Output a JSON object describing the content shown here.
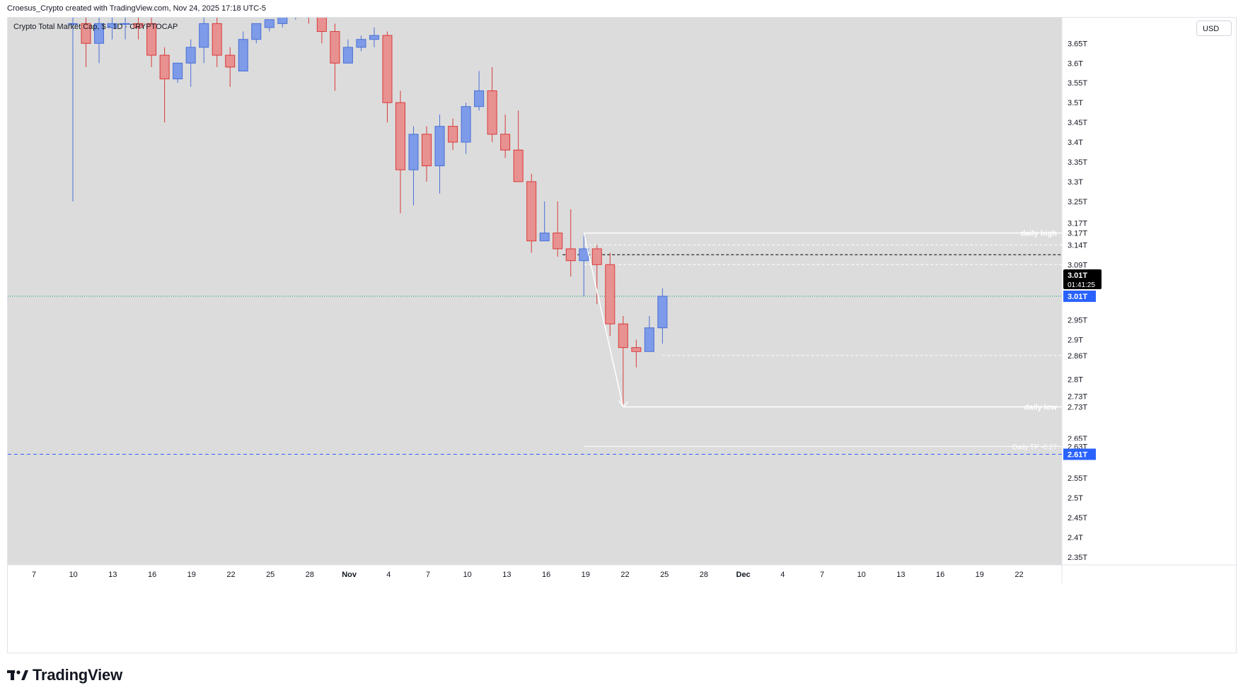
{
  "attribution": "Croesus_Crypto created with TradingView.com, Nov 24, 2025 17:18 UTC-5",
  "symbol_title": "Crypto Total Market Cap, $ · 1D · CRYPTOCAP",
  "currency": "USD",
  "brand": "TradingView",
  "colors": {
    "bull": "#7d9be8",
    "bull_border": "#4a6fd6",
    "bear": "#e89191",
    "bear_border": "#d93a3a",
    "plot_bg": "#dcdcdc",
    "last_price_badge": "#2962ff",
    "countdown_badge": "#000000",
    "level_line": "#ffffff",
    "support_dash": "#2962ff",
    "current_dots": "#089981"
  },
  "chart_data": {
    "type": "candlestick",
    "timeframe": "1D",
    "y_axis_ticks": [
      "3.65T",
      "3.6T",
      "3.55T",
      "3.5T",
      "3.45T",
      "3.4T",
      "3.35T",
      "3.3T",
      "3.25T",
      "2.95T",
      "2.9T",
      "2.8T",
      "2.65T",
      "2.55T",
      "2.5T",
      "2.45T",
      "2.4T",
      "2.35T"
    ],
    "x_axis_ticks": [
      "7",
      "10",
      "13",
      "16",
      "19",
      "22",
      "25",
      "28",
      "Nov",
      "4",
      "7",
      "10",
      "13",
      "16",
      "19",
      "22",
      "25",
      "28",
      "Dec",
      "4",
      "7",
      "10",
      "13",
      "16",
      "19",
      "22"
    ],
    "candles": [
      {
        "date": "Oct 10",
        "o": 3.7,
        "h": 3.75,
        "l": 3.25,
        "c": 3.7
      },
      {
        "date": "Oct 11",
        "o": 3.7,
        "h": 3.73,
        "l": 3.59,
        "c": 3.65
      },
      {
        "date": "Oct 12",
        "o": 3.65,
        "h": 3.72,
        "l": 3.6,
        "c": 3.7
      },
      {
        "date": "Oct 13",
        "o": 3.69,
        "h": 3.72,
        "l": 3.66,
        "c": 3.7
      },
      {
        "date": "Oct 14",
        "o": 3.7,
        "h": 3.72,
        "l": 3.66,
        "c": 3.7
      },
      {
        "date": "Oct 15",
        "o": 3.7,
        "h": 3.72,
        "l": 3.66,
        "c": 3.69
      },
      {
        "date": "Oct 16",
        "o": 3.7,
        "h": 3.72,
        "l": 3.59,
        "c": 3.62
      },
      {
        "date": "Oct 17",
        "o": 3.62,
        "h": 3.64,
        "l": 3.45,
        "c": 3.56
      },
      {
        "date": "Oct 18",
        "o": 3.56,
        "h": 3.6,
        "l": 3.55,
        "c": 3.6
      },
      {
        "date": "Oct 19",
        "o": 3.6,
        "h": 3.66,
        "l": 3.54,
        "c": 3.64
      },
      {
        "date": "Oct 20",
        "o": 3.64,
        "h": 3.73,
        "l": 3.6,
        "c": 3.7
      },
      {
        "date": "Oct 21",
        "o": 3.7,
        "h": 3.73,
        "l": 3.59,
        "c": 3.62
      },
      {
        "date": "Oct 22",
        "o": 3.62,
        "h": 3.64,
        "l": 3.54,
        "c": 3.59
      },
      {
        "date": "Oct 23",
        "o": 3.58,
        "h": 3.68,
        "l": 3.58,
        "c": 3.66
      },
      {
        "date": "Oct 24",
        "o": 3.66,
        "h": 3.7,
        "l": 3.65,
        "c": 3.7
      },
      {
        "date": "Oct 25",
        "o": 3.69,
        "h": 3.71,
        "l": 3.68,
        "c": 3.71
      },
      {
        "date": "Oct 26",
        "o": 3.7,
        "h": 3.73,
        "l": 3.69,
        "c": 3.72
      },
      {
        "date": "Oct 27",
        "o": 3.72,
        "h": 3.76,
        "l": 3.71,
        "c": 3.73
      },
      {
        "date": "Oct 28",
        "o": 3.73,
        "h": 3.74,
        "l": 3.7,
        "c": 3.72
      },
      {
        "date": "Oct 29",
        "o": 3.72,
        "h": 3.73,
        "l": 3.65,
        "c": 3.68
      },
      {
        "date": "Oct 30",
        "o": 3.68,
        "h": 3.7,
        "l": 3.53,
        "c": 3.6
      },
      {
        "date": "Oct 31",
        "o": 3.6,
        "h": 3.66,
        "l": 3.6,
        "c": 3.64
      },
      {
        "date": "Nov 1",
        "o": 3.64,
        "h": 3.67,
        "l": 3.63,
        "c": 3.66
      },
      {
        "date": "Nov 2",
        "o": 3.66,
        "h": 3.69,
        "l": 3.64,
        "c": 3.67
      },
      {
        "date": "Nov 3",
        "o": 3.67,
        "h": 3.68,
        "l": 3.45,
        "c": 3.5
      },
      {
        "date": "Nov 4",
        "o": 3.5,
        "h": 3.53,
        "l": 3.22,
        "c": 3.33
      },
      {
        "date": "Nov 5",
        "o": 3.33,
        "h": 3.44,
        "l": 3.24,
        "c": 3.42
      },
      {
        "date": "Nov 6",
        "o": 3.42,
        "h": 3.44,
        "l": 3.3,
        "c": 3.34
      },
      {
        "date": "Nov 7",
        "o": 3.34,
        "h": 3.47,
        "l": 3.27,
        "c": 3.44
      },
      {
        "date": "Nov 8",
        "o": 3.44,
        "h": 3.46,
        "l": 3.38,
        "c": 3.4
      },
      {
        "date": "Nov 9",
        "o": 3.4,
        "h": 3.5,
        "l": 3.37,
        "c": 3.49
      },
      {
        "date": "Nov 10",
        "o": 3.49,
        "h": 3.58,
        "l": 3.48,
        "c": 3.53
      },
      {
        "date": "Nov 11",
        "o": 3.53,
        "h": 3.59,
        "l": 3.4,
        "c": 3.42
      },
      {
        "date": "Nov 12",
        "o": 3.42,
        "h": 3.47,
        "l": 3.36,
        "c": 3.38
      },
      {
        "date": "Nov 13",
        "o": 3.38,
        "h": 3.48,
        "l": 3.3,
        "c": 3.3
      },
      {
        "date": "Nov 14",
        "o": 3.3,
        "h": 3.32,
        "l": 3.12,
        "c": 3.15
      },
      {
        "date": "Nov 15",
        "o": 3.15,
        "h": 3.25,
        "l": 3.15,
        "c": 3.17
      },
      {
        "date": "Nov 16",
        "o": 3.17,
        "h": 3.25,
        "l": 3.11,
        "c": 3.13
      },
      {
        "date": "Nov 17",
        "o": 3.13,
        "h": 3.23,
        "l": 3.06,
        "c": 3.1
      },
      {
        "date": "Nov 18",
        "o": 3.1,
        "h": 3.17,
        "l": 3.01,
        "c": 3.13
      },
      {
        "date": "Nov 19",
        "o": 3.13,
        "h": 3.14,
        "l": 2.99,
        "c": 3.09
      },
      {
        "date": "Nov 20",
        "o": 3.09,
        "h": 3.12,
        "l": 2.91,
        "c": 2.94
      },
      {
        "date": "Nov 21",
        "o": 2.94,
        "h": 2.96,
        "l": 2.73,
        "c": 2.88
      },
      {
        "date": "Nov 22",
        "o": 2.88,
        "h": 2.9,
        "l": 2.83,
        "c": 2.87
      },
      {
        "date": "Nov 23",
        "o": 2.87,
        "h": 2.96,
        "l": 2.87,
        "c": 2.93
      },
      {
        "date": "Nov 24",
        "o": 2.93,
        "h": 3.03,
        "l": 2.89,
        "c": 3.01
      }
    ],
    "levels": [
      {
        "price": 3.17,
        "label": "daily high",
        "axis_label": "3.17T"
      },
      {
        "price": 3.14,
        "label": "",
        "axis_label": "3.14T"
      },
      {
        "price": 3.115,
        "label": "",
        "axis_label": ""
      },
      {
        "price": 3.09,
        "label": "",
        "axis_label": "3.09T"
      },
      {
        "price": 2.86,
        "label": "",
        "axis_label": "2.86T"
      },
      {
        "price": 2.73,
        "label": "daily low",
        "axis_label": "2.73T"
      },
      {
        "price": 2.63,
        "label": "Daily TP -0.27",
        "axis_label": "2.63T"
      },
      {
        "price": 2.61,
        "label": "",
        "axis_label": "2.61T"
      }
    ],
    "extra_axis_labels": [
      "3.17T",
      "2.73T"
    ],
    "last_price": {
      "value": "3.01T",
      "countdown": "01:41:25"
    },
    "current_price_label": "3.01T",
    "support_price_label": "2.61T",
    "ylim": [
      2.33,
      3.715
    ],
    "grid": false
  }
}
